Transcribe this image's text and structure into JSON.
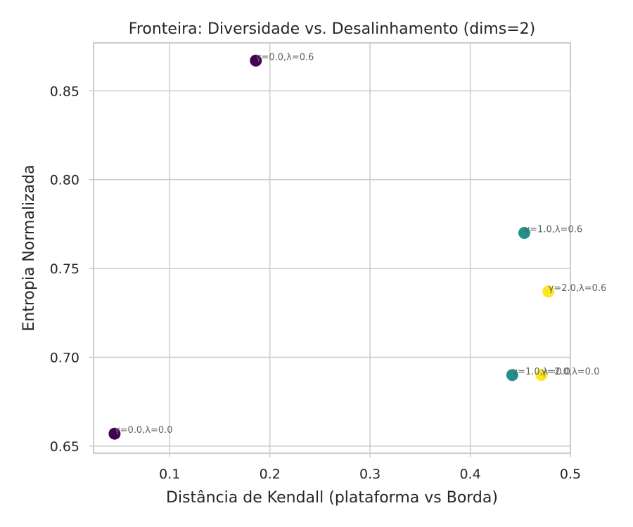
{
  "chart_data": {
    "type": "scatter",
    "title": "Fronteira: Diversidade vs. Desalinhamento (dims=2)",
    "xlabel": "Distância de Kendall (plataforma vs Borda)",
    "ylabel": "Entropia Normalizada",
    "xlim": [
      0.024,
      0.5
    ],
    "ylim": [
      0.646,
      0.877
    ],
    "xticks": [
      0.1,
      0.2,
      0.3,
      0.4,
      0.5
    ],
    "xtick_labels": [
      "0.1",
      "0.2",
      "0.3",
      "0.4",
      "0.5"
    ],
    "yticks": [
      0.65,
      0.7,
      0.75,
      0.8,
      0.85
    ],
    "ytick_labels": [
      "0.65",
      "0.70",
      "0.75",
      "0.80",
      "0.85"
    ],
    "grid": true,
    "colormap": {
      "0.0": "#440154",
      "1.0": "#21908c",
      "2.0": "#fde725"
    },
    "points": [
      {
        "x": 0.045,
        "y": 0.657,
        "gamma": 0.0,
        "label": "γ=0.0,λ=0.0"
      },
      {
        "x": 0.186,
        "y": 0.867,
        "gamma": 0.0,
        "label": "γ=0.0,λ=0.6"
      },
      {
        "x": 0.442,
        "y": 0.69,
        "gamma": 1.0,
        "label": "γ=1.0,λ=0.0"
      },
      {
        "x": 0.454,
        "y": 0.77,
        "gamma": 1.0,
        "label": "γ=1.0,λ=0.6"
      },
      {
        "x": 0.471,
        "y": 0.69,
        "gamma": 2.0,
        "label": "γ=2.0,λ=0.0"
      },
      {
        "x": 0.478,
        "y": 0.737,
        "gamma": 2.0,
        "label": "γ=2.0,λ=0.6"
      }
    ]
  }
}
